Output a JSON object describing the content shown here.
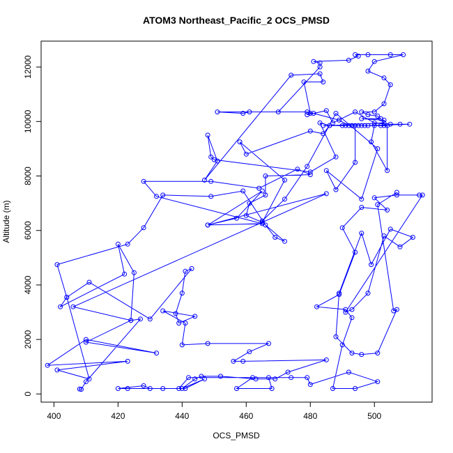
{
  "chart_data": {
    "type": "line",
    "title": "ATOM3 Northeast_Pacific_2 OCS_PMSD",
    "xlabel": "OCS_PMSD",
    "ylabel": "Altitude (m)",
    "xlim": [
      396,
      518
    ],
    "ylim": [
      -300,
      12950
    ],
    "xticks": [
      400,
      420,
      440,
      460,
      480,
      500
    ],
    "yticks": [
      0,
      2000,
      4000,
      6000,
      8000,
      10000,
      12000
    ],
    "series_color": "#0000ff",
    "marker": "open-circle",
    "series": [
      {
        "points": [
          [
            408,
            180
          ],
          [
            408.5,
            170
          ],
          [
            410,
            450
          ],
          [
            427,
            2750
          ],
          [
            424,
            2700
          ],
          [
            410,
            1900
          ],
          [
            432,
            1500
          ],
          [
            410,
            2000
          ],
          [
            398,
            1050
          ],
          [
            423,
            1200
          ],
          [
            401,
            880
          ],
          [
            411,
            550
          ],
          [
            404,
            3550
          ],
          [
            402,
            3200
          ],
          [
            422,
            4400
          ],
          [
            420,
            5500
          ],
          [
            425,
            4450
          ],
          [
            424,
            2700
          ],
          [
            406,
            3200
          ],
          [
            485,
            7350
          ],
          [
            448,
            6200
          ],
          [
            465,
            7450
          ],
          [
            457,
            6450
          ],
          [
            448,
            6200
          ],
          [
            465,
            6250
          ],
          [
            432,
            7250
          ],
          [
            428,
            7800
          ],
          [
            449,
            7800
          ],
          [
            464,
            7550
          ],
          [
            476,
            8250
          ],
          [
            480,
            8050
          ],
          [
            466,
            8000
          ],
          [
            466,
            7300
          ],
          [
            461,
            7000
          ],
          [
            460,
            6550
          ],
          [
            465,
            6300
          ],
          [
            472,
            7850
          ],
          [
            458,
            9250
          ],
          [
            460,
            8800
          ],
          [
            480,
            9650
          ],
          [
            484,
            9550
          ],
          [
            486,
            9850
          ],
          [
            503,
            9950
          ],
          [
            486,
            9850
          ],
          [
            483,
            9950
          ],
          [
            488,
            8700
          ],
          [
            480,
            8150
          ],
          [
            450,
            8600
          ],
          [
            449,
            8700
          ],
          [
            448,
            9500
          ],
          [
            451,
            8550
          ],
          [
            447,
            7850
          ],
          [
            474,
            11700
          ],
          [
            483,
            11750
          ],
          [
            484,
            11450
          ],
          [
            478,
            11450
          ],
          [
            480,
            10300
          ],
          [
            479,
            10250
          ],
          [
            485,
            10400
          ],
          [
            487,
            9950
          ],
          [
            494,
            10350
          ],
          [
            500,
            9950
          ],
          [
            505,
            9900
          ],
          [
            508,
            9900
          ],
          [
            511,
            9900
          ],
          [
            497,
            9850
          ],
          [
            495,
            9850
          ],
          [
            493,
            9850
          ],
          [
            491,
            9850
          ],
          [
            490,
            9850
          ],
          [
            484,
            9850
          ],
          [
            498,
            9850
          ],
          [
            500,
            9850
          ],
          [
            499,
            9250
          ],
          [
            504,
            8200
          ],
          [
            504,
            9850
          ],
          [
            502,
            9850
          ],
          [
            492,
            9850
          ],
          [
            489,
            10050
          ],
          [
            481,
            10300
          ],
          [
            479,
            10350
          ],
          [
            461,
            10350
          ],
          [
            459,
            10300
          ],
          [
            451,
            10350
          ],
          [
            470,
            10350
          ],
          [
            483,
            12000
          ],
          [
            483,
            12150
          ],
          [
            481,
            12200
          ],
          [
            492,
            12250
          ],
          [
            495,
            12400
          ],
          [
            494,
            12450
          ],
          [
            498,
            12450
          ],
          [
            505,
            12450
          ],
          [
            509,
            12450
          ],
          [
            500,
            12200
          ],
          [
            498,
            11850
          ],
          [
            503,
            11600
          ],
          [
            505,
            11350
          ],
          [
            503,
            10650
          ],
          [
            500,
            10350
          ],
          [
            496,
            10350
          ],
          [
            498,
            10250
          ],
          [
            501,
            10200
          ],
          [
            502,
            10100
          ],
          [
            496,
            10100
          ],
          [
            503,
            10050
          ],
          [
            503,
            9850
          ],
          [
            496,
            9850
          ],
          [
            493,
            9850
          ],
          [
            494,
            9850
          ],
          [
            494,
            8500
          ],
          [
            488,
            7500
          ],
          [
            485,
            8200
          ],
          [
            496,
            7150
          ],
          [
            501,
            9000
          ],
          [
            488,
            10300
          ],
          [
            479,
            8350
          ],
          [
            472,
            7150
          ],
          [
            465,
            6350
          ],
          [
            469,
            5750
          ],
          [
            472,
            5600
          ],
          [
            466,
            6200
          ],
          [
            459,
            7450
          ],
          [
            449,
            7250
          ],
          [
            434,
            7300
          ],
          [
            428,
            6100
          ],
          [
            423,
            5500
          ],
          [
            401,
            4750
          ],
          [
            404,
            3550
          ],
          [
            411,
            4100
          ],
          [
            430,
            2750
          ],
          [
            443,
            4600
          ],
          [
            441,
            4500
          ],
          [
            440,
            3700
          ],
          [
            438,
            2950
          ],
          [
            439,
            2600
          ],
          [
            444,
            2850
          ],
          [
            434,
            3050
          ],
          [
            441,
            2600
          ],
          [
            440,
            1800
          ],
          [
            448,
            1850
          ],
          [
            467,
            1850
          ],
          [
            461,
            1550
          ],
          [
            456,
            1200
          ],
          [
            459,
            1200
          ],
          [
            485,
            1250
          ],
          [
            473,
            800
          ],
          [
            469,
            550
          ],
          [
            463,
            550
          ],
          [
            452,
            650
          ],
          [
            446,
            650
          ],
          [
            444,
            550
          ],
          [
            440,
            200
          ],
          [
            447,
            550
          ],
          [
            441,
            200
          ],
          [
            430,
            200
          ],
          [
            428,
            300
          ],
          [
            420,
            200
          ],
          [
            423,
            200
          ],
          [
            434,
            200
          ],
          [
            439,
            200
          ],
          [
            442,
            600
          ],
          [
            467,
            600
          ],
          [
            468,
            200
          ],
          [
            457,
            200
          ],
          [
            462,
            600
          ],
          [
            474,
            600
          ],
          [
            479,
            600
          ],
          [
            480,
            350
          ],
          [
            492,
            800
          ],
          [
            501,
            450
          ],
          [
            494,
            200
          ],
          [
            487,
            200
          ],
          [
            490,
            1800
          ],
          [
            493,
            2800
          ],
          [
            491,
            3100
          ],
          [
            482,
            3200
          ],
          [
            489,
            3650
          ],
          [
            494,
            5200
          ],
          [
            490,
            6100
          ],
          [
            496,
            6850
          ],
          [
            504,
            6750
          ],
          [
            500,
            7200
          ],
          [
            507,
            7300
          ],
          [
            514,
            7300
          ],
          [
            515,
            7300
          ],
          [
            491,
            3000
          ],
          [
            493,
            3100
          ],
          [
            498,
            3700
          ],
          [
            503,
            5800
          ],
          [
            508,
            5400
          ],
          [
            512,
            5750
          ],
          [
            505,
            6050
          ],
          [
            499,
            4750
          ],
          [
            496,
            5900
          ],
          [
            489,
            3700
          ],
          [
            488,
            2100
          ],
          [
            493,
            1500
          ],
          [
            496,
            1450
          ],
          [
            501,
            1500
          ],
          [
            507,
            3100
          ],
          [
            506,
            3050
          ],
          [
            501,
            6950
          ],
          [
            507,
            7400
          ]
        ]
      }
    ]
  }
}
